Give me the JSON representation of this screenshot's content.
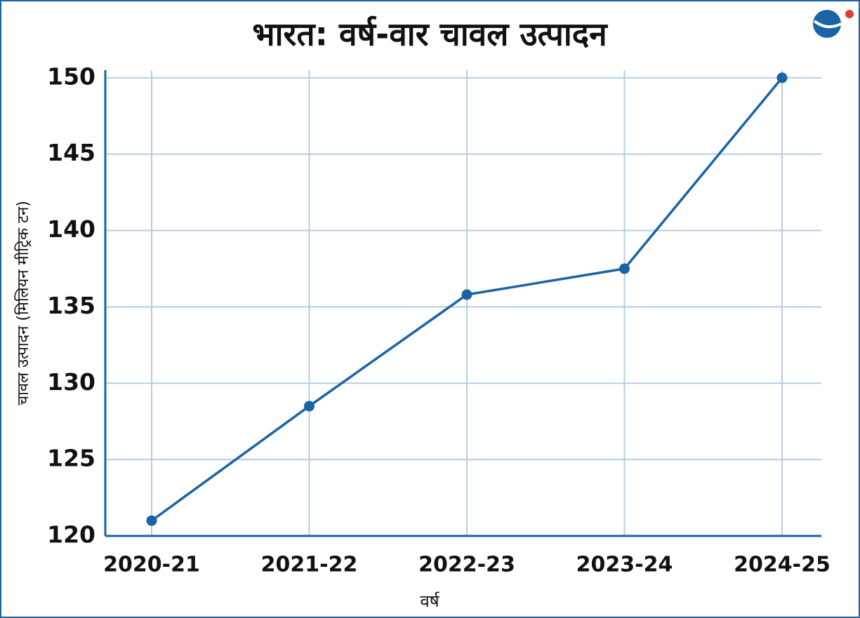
{
  "chart_data": {
    "type": "line",
    "title": "भारत: वर्ष-वार चावल उत्पादन",
    "xlabel": "वर्ष",
    "ylabel": "चावल उत्पादन (मिलियन मीट्रिक टन)",
    "categories": [
      "2020-21",
      "2021-22",
      "2022-23",
      "2023-24",
      "2024-25"
    ],
    "values": [
      121,
      128.5,
      135.8,
      137.5,
      150
    ],
    "color": "#1a63a5",
    "ylim": [
      120,
      150.5
    ],
    "yticks": [
      120,
      125,
      130,
      135,
      140,
      145,
      150
    ],
    "grid": true
  }
}
